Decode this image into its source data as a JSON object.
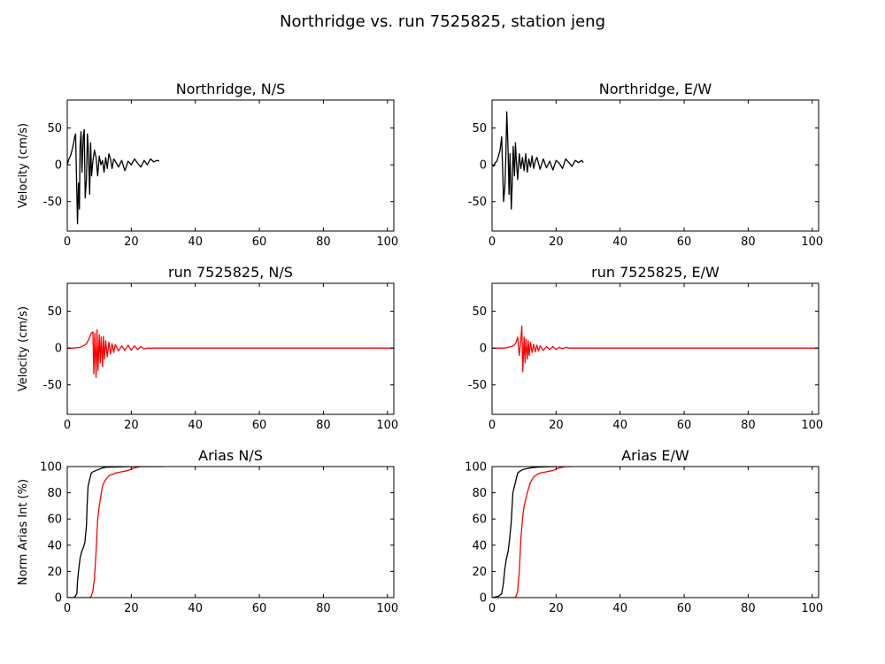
{
  "figure": {
    "title": "Northridge vs. run 7525825, station jeng"
  },
  "chart_data": [
    {
      "type": "line",
      "title": "Northridge, N/S",
      "ylabel": "Velocity (cm/s)",
      "xlim": [
        0,
        102
      ],
      "ylim": [
        -90,
        88
      ],
      "xticks": [
        0,
        20,
        40,
        60,
        80,
        100
      ],
      "yticks": [
        -50,
        0,
        50
      ],
      "series": [
        {
          "color": "#000000",
          "x": [
            0,
            0.5,
            1,
            1.5,
            2,
            2.3,
            2.6,
            3,
            3.2,
            3.5,
            3.8,
            4,
            4.3,
            4.6,
            5,
            5.3,
            5.6,
            6,
            6.3,
            6.6,
            7,
            7.3,
            7.6,
            8,
            8.5,
            9,
            9.5,
            10,
            10.5,
            11,
            11.5,
            12,
            12.5,
            13,
            13.5,
            14,
            14.5,
            15,
            16,
            17,
            18,
            19,
            20,
            21,
            22,
            23,
            24,
            25,
            26,
            27,
            28,
            28.7
          ],
          "y": [
            0,
            8,
            12,
            20,
            30,
            38,
            42,
            -40,
            -80,
            -25,
            -60,
            25,
            45,
            -10,
            38,
            48,
            -45,
            -20,
            42,
            20,
            -40,
            30,
            -15,
            5,
            20,
            10,
            -15,
            12,
            0,
            6,
            -10,
            10,
            -5,
            15,
            8,
            -5,
            8,
            5,
            -3,
            6,
            -8,
            5,
            0,
            8,
            2,
            -3,
            6,
            0,
            8,
            4,
            6,
            5
          ]
        }
      ]
    },
    {
      "type": "line",
      "title": "Northridge, E/W",
      "ylabel": "",
      "xlim": [
        0,
        102
      ],
      "ylim": [
        -90,
        88
      ],
      "xticks": [
        0,
        20,
        40,
        60,
        80,
        100
      ],
      "yticks": [
        -50,
        0,
        50
      ],
      "series": [
        {
          "color": "#000000",
          "x": [
            0,
            0.5,
            1,
            1.5,
            2,
            2.5,
            3,
            3.3,
            3.6,
            4,
            4.3,
            4.6,
            5,
            5.3,
            5.6,
            6,
            6.3,
            6.6,
            7,
            7.3,
            7.6,
            8,
            8.5,
            9,
            9.5,
            10,
            10.5,
            11,
            11.5,
            12,
            12.5,
            13,
            13.5,
            14,
            15,
            16,
            17,
            18,
            19,
            20,
            21,
            22,
            23,
            24,
            25,
            26,
            27,
            28,
            28.5
          ],
          "y": [
            0,
            -2,
            3,
            5,
            12,
            20,
            38,
            -5,
            -50,
            -30,
            10,
            72,
            20,
            -40,
            15,
            -60,
            -25,
            25,
            -15,
            30,
            5,
            -20,
            15,
            -5,
            10,
            -8,
            15,
            -10,
            8,
            -3,
            12,
            -5,
            5,
            10,
            -6,
            8,
            -4,
            5,
            -7,
            6,
            2,
            -5,
            8,
            3,
            -2,
            6,
            3,
            6,
            3
          ]
        }
      ]
    },
    {
      "type": "line",
      "title": "run 7525825, N/S",
      "ylabel": "Velocity (cm/s)",
      "xlim": [
        0,
        102
      ],
      "ylim": [
        -90,
        88
      ],
      "xticks": [
        0,
        20,
        40,
        60,
        80,
        100
      ],
      "yticks": [
        -50,
        0,
        50
      ],
      "series": [
        {
          "color": "#ff0000",
          "x": [
            0,
            2,
            4,
            5,
            6,
            6.5,
            7,
            7.5,
            8,
            8.3,
            8.6,
            9,
            9.3,
            9.6,
            10,
            10.3,
            10.6,
            11,
            11.3,
            11.6,
            12,
            12.5,
            13,
            13.5,
            14,
            14.5,
            15,
            16,
            17,
            18,
            19,
            20,
            21,
            22,
            23,
            24,
            25,
            30,
            40,
            60,
            80,
            100,
            102
          ],
          "y": [
            0,
            0,
            1,
            3,
            6,
            10,
            15,
            20,
            22,
            -35,
            20,
            -40,
            25,
            -30,
            18,
            -20,
            15,
            -25,
            16,
            -15,
            10,
            -12,
            8,
            -8,
            6,
            -6,
            5,
            -4,
            3,
            -3,
            4,
            -3,
            3,
            -2,
            2,
            -1,
            0,
            0,
            0,
            0,
            0,
            0,
            0
          ]
        }
      ]
    },
    {
      "type": "line",
      "title": "run 7525825, E/W",
      "ylabel": "",
      "xlim": [
        0,
        102
      ],
      "ylim": [
        -90,
        88
      ],
      "xticks": [
        0,
        20,
        40,
        60,
        80,
        100
      ],
      "yticks": [
        -50,
        0,
        50
      ],
      "series": [
        {
          "color": "#ff0000",
          "x": [
            0,
            2,
            4,
            5,
            6,
            7,
            7.5,
            8,
            8.5,
            9,
            9.3,
            9.6,
            10,
            10.3,
            10.6,
            11,
            11.3,
            11.6,
            12,
            12.5,
            13,
            13.5,
            14,
            14.5,
            15,
            16,
            17,
            18,
            19,
            20,
            21,
            22,
            23,
            24,
            25,
            30,
            40,
            60,
            80,
            100,
            102
          ],
          "y": [
            0,
            0,
            0,
            1,
            2,
            4,
            8,
            15,
            -10,
            12,
            30,
            -32,
            15,
            -20,
            12,
            -15,
            10,
            -10,
            8,
            -6,
            5,
            -5,
            4,
            -4,
            3,
            -3,
            2,
            -2,
            2,
            -2,
            1,
            -1,
            1,
            0,
            0,
            0,
            0,
            0,
            0,
            0,
            0
          ]
        }
      ]
    },
    {
      "type": "line",
      "title": "Arias N/S",
      "ylabel": "Norm Arias Int (%)",
      "xlim": [
        0,
        102
      ],
      "ylim": [
        0,
        100
      ],
      "xticks": [
        0,
        20,
        40,
        60,
        80,
        100
      ],
      "yticks": [
        0,
        20,
        40,
        60,
        80,
        100
      ],
      "series": [
        {
          "color": "#000000",
          "x": [
            0,
            2,
            2.5,
            3,
            3.2,
            3.5,
            4,
            4.5,
            5,
            5.5,
            6,
            6.2,
            6.5,
            7,
            7.5,
            8,
            9,
            10,
            11,
            12,
            14,
            16,
            20,
            25,
            30
          ],
          "y": [
            0,
            0,
            1,
            3,
            12,
            20,
            30,
            35,
            38,
            42,
            55,
            70,
            85,
            90,
            95,
            96,
            97,
            98,
            99,
            99.5,
            99.7,
            99.8,
            100,
            100,
            100
          ]
        },
        {
          "color": "#ff0000",
          "x": [
            0,
            5,
            6,
            7,
            7.5,
            8,
            8.5,
            9,
            9.5,
            10,
            10.5,
            11,
            11.5,
            12,
            13,
            14,
            15,
            16,
            17,
            18,
            19,
            20,
            21,
            22,
            23,
            25
          ],
          "y": [
            0,
            0,
            0,
            0,
            1,
            5,
            15,
            35,
            60,
            70,
            78,
            85,
            88,
            90,
            93,
            94,
            95,
            95.5,
            96,
            96.5,
            97,
            98,
            99,
            99.5,
            100,
            100
          ]
        }
      ]
    },
    {
      "type": "line",
      "title": "Arias E/W",
      "ylabel": "",
      "xlim": [
        0,
        102
      ],
      "ylim": [
        0,
        100
      ],
      "xticks": [
        0,
        20,
        40,
        60,
        80,
        100
      ],
      "yticks": [
        0,
        20,
        40,
        60,
        80,
        100
      ],
      "series": [
        {
          "color": "#000000",
          "x": [
            0,
            2,
            3,
            3.5,
            4,
            4.5,
            5,
            5.5,
            6,
            6.5,
            7,
            7.5,
            8,
            9,
            10,
            11,
            12,
            14,
            16,
            20,
            25
          ],
          "y": [
            0,
            1,
            3,
            10,
            22,
            30,
            35,
            45,
            58,
            80,
            85,
            90,
            95,
            97,
            98,
            98.5,
            99,
            99.5,
            99.8,
            100,
            100
          ]
        },
        {
          "color": "#ff0000",
          "x": [
            0,
            6,
            7,
            7.5,
            8,
            8.5,
            9,
            9.5,
            10,
            11,
            12,
            13,
            14,
            15,
            16,
            17,
            18,
            19,
            20,
            21,
            22,
            23
          ],
          "y": [
            0,
            0,
            0,
            1,
            5,
            20,
            45,
            60,
            70,
            80,
            88,
            92,
            94,
            95,
            95.5,
            96,
            96.5,
            97,
            98,
            99,
            99.5,
            100
          ]
        }
      ]
    }
  ]
}
